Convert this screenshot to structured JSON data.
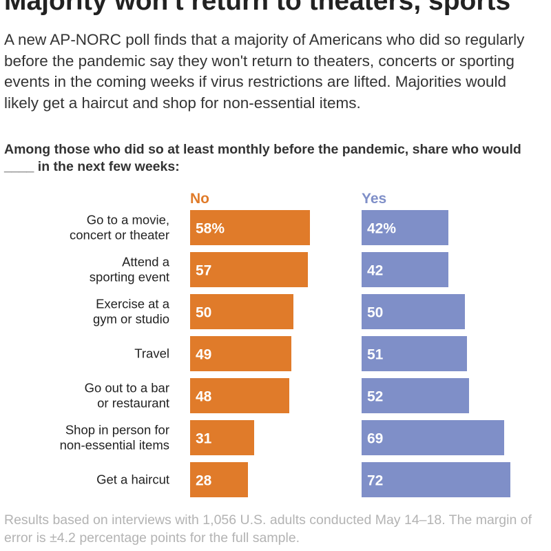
{
  "headline": "Majority won't return to theaters, sports",
  "dek": "A new AP-NORC poll finds that a majority of Americans who did so regularly before the pandemic say they won't return to theaters, concerts or sporting events in the coming weeks if virus restrictions are lifted. Majorities would likely get a haircut and shop for non-essential items.",
  "question": "Among those who did so at least monthly before the pandemic, share who would ____ in the next few weeks:",
  "note": "Results based on interviews with 1,056 U.S. adults conducted May 14–18. The margin of error is ±4.2 percentage points for the full sample.",
  "colors": {
    "no": "#e07b2a",
    "yes": "#7f8fc8"
  },
  "chart_data": {
    "type": "bar",
    "orientation": "horizontal",
    "unit": "percent",
    "categories": [
      [
        "Go to a movie,",
        "concert or theater"
      ],
      [
        "Attend a",
        "sporting event"
      ],
      [
        "Exercise at a",
        "gym or studio"
      ],
      [
        "Travel"
      ],
      [
        "Go out to a bar",
        "or restaurant"
      ],
      [
        "Shop in person for",
        "non-essential items"
      ],
      [
        "Get a haircut"
      ]
    ],
    "series": [
      {
        "name": "No",
        "values": [
          58,
          57,
          50,
          49,
          48,
          31,
          28
        ],
        "labels": [
          "58%",
          "57",
          "50",
          "49",
          "48",
          "31",
          "28"
        ]
      },
      {
        "name": "Yes",
        "values": [
          42,
          42,
          50,
          51,
          52,
          69,
          72
        ],
        "labels": [
          "42%",
          "42",
          "50",
          "51",
          "52",
          "69",
          "72"
        ]
      }
    ],
    "xlim": [
      0,
      100
    ],
    "grid": false,
    "legend": "column headers"
  }
}
